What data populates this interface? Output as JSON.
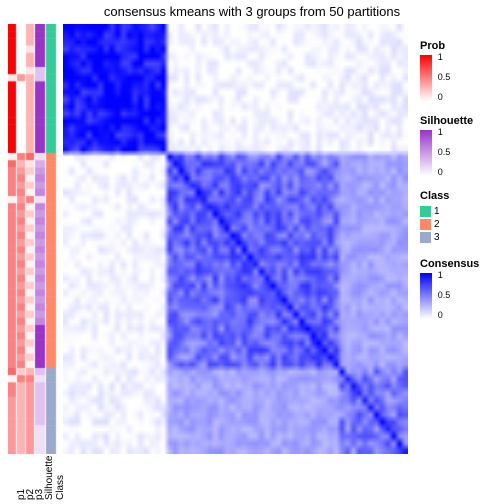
{
  "title": "consensus kmeans with 3 groups from 50 partitions",
  "n": 60,
  "group_sizes": [
    18,
    30,
    12
  ],
  "annotation_cols": [
    {
      "id": "p1",
      "label": "p1",
      "width": 8
    },
    {
      "id": "p2",
      "label": "p2",
      "width": 8
    },
    {
      "id": "p3",
      "label": "p3",
      "width": 8
    },
    {
      "id": "sil",
      "label": "Silhouette",
      "width": 10
    },
    {
      "id": "class",
      "label": "Class",
      "width": 10
    }
  ],
  "annotation_gap": 1,
  "heatmap_gap": 6,
  "colors": {
    "prob_low": "#ffffff",
    "prob_high": "#ff0000",
    "sil_low": "#ffffff",
    "sil_high": "#9933cc",
    "cons_low": "#ffffff",
    "cons_high": "#0000ff",
    "class": {
      "1": "#33cc99",
      "2": "#ff8866",
      "3": "#99aacc"
    }
  },
  "legends": {
    "prob": {
      "title": "Prob",
      "ticks": [
        1,
        0.5,
        0
      ]
    },
    "sil": {
      "title": "Silhouette",
      "ticks": [
        1,
        0.5,
        0
      ]
    },
    "class": {
      "title": "Class",
      "items": [
        "1",
        "2",
        "3"
      ]
    },
    "consensus": {
      "title": "Consensus",
      "ticks": [
        1,
        0.5,
        0
      ]
    }
  },
  "p1": {
    "g1": [
      1,
      1,
      1,
      1,
      1,
      1,
      1,
      0.1,
      1,
      1,
      1,
      1,
      1,
      1,
      1,
      1,
      1,
      1
    ],
    "g2": [
      0.05,
      0.6,
      0.5,
      0.5,
      0.5,
      0.5,
      0.05,
      0.5,
      0.5,
      0.5,
      0.5,
      0.5,
      0.5,
      0.5,
      0.5,
      0.5,
      0.5,
      0.5,
      0.5,
      0.5,
      0.5,
      0.5,
      0.5,
      0.5,
      0.5,
      0.5,
      0.5,
      0.5,
      0.5,
      0.5
    ],
    "g3": [
      0.6,
      0.05,
      0.5,
      0.5,
      0.4,
      0.4,
      0.4,
      0.4,
      0.4,
      0.4,
      0.4,
      0.4
    ]
  },
  "p2": {
    "g1": [
      0,
      0,
      0,
      0,
      0,
      0,
      0,
      0.4,
      0,
      0,
      0,
      0,
      0,
      0,
      0,
      0,
      0,
      0
    ],
    "g2": [
      0.5,
      0.3,
      0.4,
      0.5,
      0.4,
      0.5,
      0.4,
      0.5,
      0.4,
      0.5,
      0.4,
      0.5,
      0.4,
      0.5,
      0.4,
      0.5,
      0.4,
      0.5,
      0.4,
      0.5,
      0.4,
      0.5,
      0.4,
      0.5,
      0.4,
      0.5,
      0.4,
      0.5,
      0.4,
      0.5
    ],
    "g3": [
      0.2,
      0.5,
      0.3,
      0.3,
      0.3,
      0.3,
      0.3,
      0.3,
      0.3,
      0.3,
      0.3,
      0.3
    ]
  },
  "p3": {
    "g1": [
      0.3,
      0.3,
      0.3,
      0.1,
      0.3,
      0.3,
      0.1,
      0.3,
      0.3,
      0.3,
      0.3,
      0.3,
      0.3,
      0.3,
      0.3,
      0.3,
      0.3,
      0.3
    ],
    "g2": [
      0.6,
      0.1,
      0.2,
      0.05,
      0.2,
      0.05,
      0.5,
      0.05,
      0.2,
      0.05,
      0.2,
      0.05,
      0.2,
      0.05,
      0.2,
      0.05,
      0.2,
      0.05,
      0.2,
      0.05,
      0.2,
      0.05,
      0.2,
      0.05,
      0.2,
      0.05,
      0.2,
      0.05,
      0.2,
      0.05
    ],
    "g3": [
      0.3,
      0.5,
      0.4,
      0.4,
      0.4,
      0.4,
      0.4,
      0.4,
      0.4,
      0.4,
      0.4,
      0.4
    ]
  },
  "sil": {
    "g1": [
      1,
      1,
      1,
      1,
      1,
      1,
      0.3,
      0.3,
      1,
      1,
      1,
      1,
      1,
      1,
      1,
      1,
      1,
      1
    ],
    "g2": [
      0.15,
      0.4,
      0.5,
      0.6,
      0.5,
      0.6,
      0.15,
      0.6,
      0.5,
      0.6,
      0.5,
      0.6,
      0.5,
      0.6,
      0.5,
      0.6,
      0.5,
      0.6,
      0.5,
      0.6,
      0.5,
      0.6,
      0.5,
      0.6,
      1,
      1,
      1,
      1,
      1,
      1
    ],
    "g3": [
      0.3,
      0.15,
      0.3,
      0.3,
      0.3,
      0.3,
      0.3,
      0.3,
      0.15,
      0.15,
      0.15,
      0.15
    ]
  },
  "class_vals": {
    "g1": 1,
    "g2": 2,
    "g3": 3
  },
  "consensus_blocks": {
    "d11": 0.95,
    "d22": 0.65,
    "d33": 0.55,
    "o12": 0.03,
    "o13": 0.05,
    "o23": 0.35
  },
  "consensus_noise": 0.3
}
